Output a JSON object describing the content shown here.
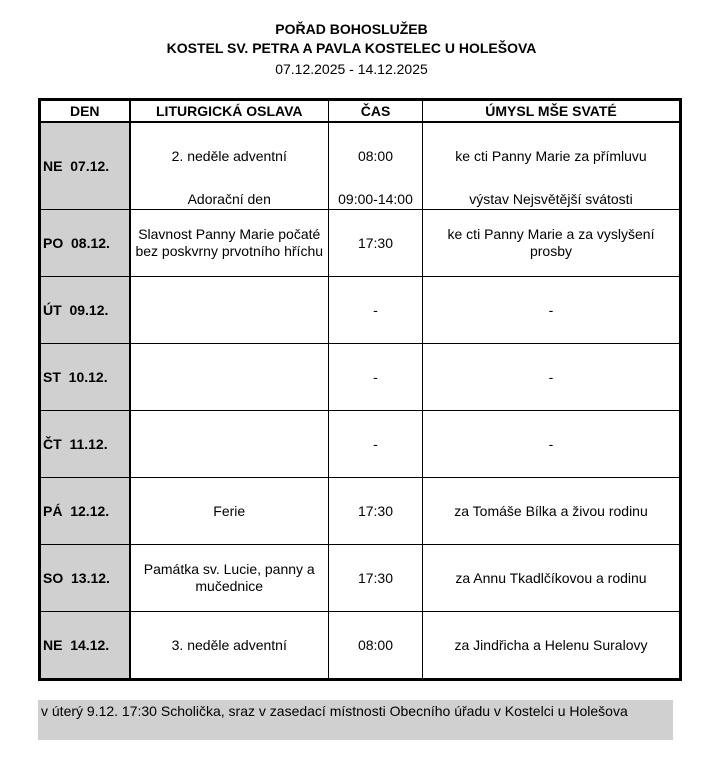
{
  "header": {
    "title": "POŘAD BOHOSLUŽEB",
    "church": "KOSTEL SV. PETRA A PAVLA KOSTELEC U HOLEŠOVA",
    "dates": "07.12.2025 - 14.12.2025"
  },
  "table": {
    "columns": [
      "DEN",
      "LITURGICKÁ OSLAVA",
      "ČAS",
      "ÚMYSL MŠE SVATÉ"
    ],
    "rows": [
      {
        "day": "NE  07.12.",
        "celebration": "2. neděle adventní",
        "time": "08:00",
        "intention": "ke cti Panny Marie za přímluvu",
        "extra_celebration": "Adorační den",
        "extra_time": "09:00-14:00",
        "extra_intention": "výstav Nejsvětější svátosti"
      },
      {
        "day": "PO  08.12.",
        "celebration": "Slavnost Panny Marie počaté bez poskvrny prvotního hříchu",
        "time": "17:30",
        "intention": "ke cti Panny Marie a za vyslyšení prosby"
      },
      {
        "day": "ÚT  09.12.",
        "celebration": "",
        "time": "-",
        "intention": "-"
      },
      {
        "day": "ST  10.12.",
        "celebration": "",
        "time": "-",
        "intention": "-"
      },
      {
        "day": "ČT  11.12.",
        "celebration": "",
        "time": "-",
        "intention": "-"
      },
      {
        "day": "PÁ  12.12.",
        "celebration": "Ferie",
        "time": "17:30",
        "intention": "za Tomáše Bílka a živou rodinu"
      },
      {
        "day": "SO  13.12.",
        "celebration": "Památka sv. Lucie, panny a mučednice",
        "time": "17:30",
        "intention": "za Annu Tkadlčíkovou a rodinu"
      },
      {
        "day": "NE  14.12.",
        "celebration": "3. neděle adventní",
        "time": "08:00",
        "intention": "za Jindřicha a Helenu Suralovy"
      }
    ]
  },
  "note": "v úterý 9.12. 17:30 Scholička, sraz v zasedací místnosti Obecního úřadu v Kostelci u Holešova"
}
